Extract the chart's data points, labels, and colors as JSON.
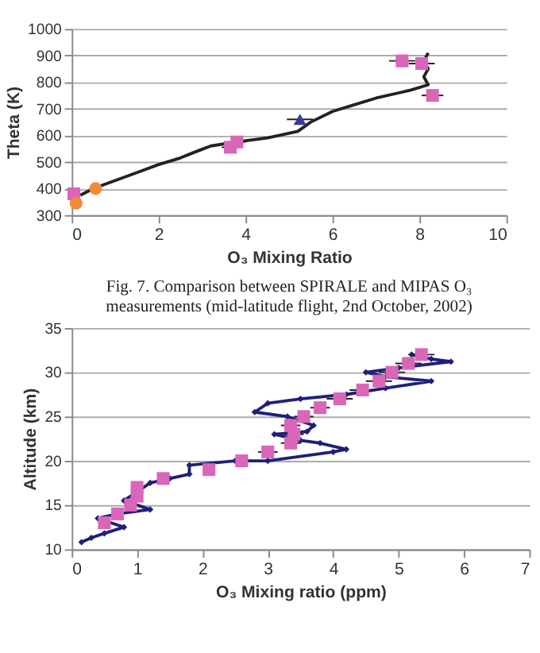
{
  "chart_data": [
    {
      "type": "line",
      "xlabel": "O₃ Mixing Ratio",
      "ylabel": "Theta (K)",
      "xlim": [
        0,
        10
      ],
      "xticks": [
        0,
        2,
        4,
        6,
        8,
        10
      ],
      "ylim": [
        300,
        1000
      ],
      "yticks": [
        300,
        400,
        500,
        600,
        700,
        800,
        900,
        1000
      ],
      "grid": "y",
      "annotations": [
        "Fig. 7. Comparison between SPIRALE and MIPAS O₃ measurements (mid-latitude flight, 2nd October, 2002)"
      ],
      "series": [
        {
          "type": "line",
          "color": "#222222",
          "marker": "none",
          "x": [
            0.2,
            0.5,
            1.0,
            1.5,
            2.0,
            2.5,
            2.8,
            3.2,
            3.8,
            4.5,
            5.2,
            5.5,
            6.0,
            6.5,
            7.0,
            7.8,
            8.2,
            8.1,
            8.2,
            8.1,
            8.2
          ],
          "values": [
            375,
            400,
            430,
            460,
            490,
            515,
            535,
            560,
            575,
            590,
            615,
            650,
            690,
            715,
            740,
            770,
            790,
            820,
            850,
            880,
            910
          ]
        },
        {
          "type": "scatter",
          "color": "#d966b8",
          "marker": "square",
          "x": [
            0.05,
            3.65,
            3.8,
            7.6,
            8.05,
            8.3
          ],
          "values": [
            380,
            555,
            575,
            880,
            870,
            750
          ],
          "xerrors": [
            null,
            0.2,
            0.2,
            0.3,
            0.3,
            0.25
          ]
        },
        {
          "type": "scatter",
          "color": "#f5893a",
          "marker": "circle",
          "x": [
            0.1,
            0.55
          ],
          "values": [
            345,
            400
          ]
        },
        {
          "type": "scatter",
          "color": "#3b3b9a",
          "marker": "triangle",
          "x": [
            5.25
          ],
          "values": [
            660
          ],
          "xerrors": [
            0.3
          ]
        }
      ]
    },
    {
      "type": "line",
      "xlabel": "O₃ Mixing ratio (ppm)",
      "ylabel": "Altitude (km)",
      "xlim": [
        0,
        7
      ],
      "xticks": [
        0,
        1,
        2,
        3,
        4,
        5,
        6,
        7
      ],
      "ylim": [
        10,
        35
      ],
      "yticks": [
        10,
        15,
        20,
        25,
        30,
        35
      ],
      "grid": "y",
      "series": [
        {
          "type": "line",
          "color": "#1f1f7a",
          "marker": "diamond",
          "x": [
            0.15,
            0.3,
            0.5,
            0.8,
            0.4,
            0.7,
            1.2,
            0.8,
            1.0,
            1.2,
            1.5,
            1.8,
            1.8,
            2.5,
            3.0,
            4.0,
            4.2,
            3.8,
            3.5,
            3.1,
            3.6,
            3.7,
            3.3,
            2.8,
            3.0,
            3.5,
            4.2,
            4.8,
            5.5,
            4.8,
            4.5,
            5.0,
            5.8,
            5.5,
            5.2
          ],
          "values": [
            10.8,
            11.3,
            11.8,
            12.5,
            13.5,
            14,
            14.5,
            15.5,
            16.5,
            17.5,
            18,
            18.5,
            19.5,
            20,
            20,
            21,
            21.3,
            22,
            22.3,
            23,
            23.3,
            24,
            25,
            25.5,
            26.5,
            27,
            27.5,
            28.2,
            29,
            29.5,
            30,
            30.5,
            31.2,
            31.5,
            32
          ]
        },
        {
          "type": "scatter",
          "color": "#d966b8",
          "marker": "square",
          "x": [
            0.5,
            0.7,
            0.9,
            1.0,
            1.0,
            1.4,
            2.1,
            2.6,
            3.0,
            3.35,
            3.4,
            3.35,
            3.55,
            3.8,
            4.1,
            4.45,
            4.7,
            4.9,
            5.15,
            5.35
          ],
          "values": [
            13,
            14,
            15,
            16,
            17,
            18,
            19,
            20,
            21,
            22,
            23,
            24,
            25,
            26,
            27,
            28,
            29,
            30,
            31,
            32
          ],
          "xerrors": [
            null,
            null,
            null,
            null,
            null,
            null,
            null,
            null,
            0.15,
            0.15,
            0.15,
            0.15,
            0.15,
            0.15,
            0.2,
            0.2,
            0.2,
            0.2,
            0.2,
            0.2
          ]
        }
      ]
    }
  ]
}
